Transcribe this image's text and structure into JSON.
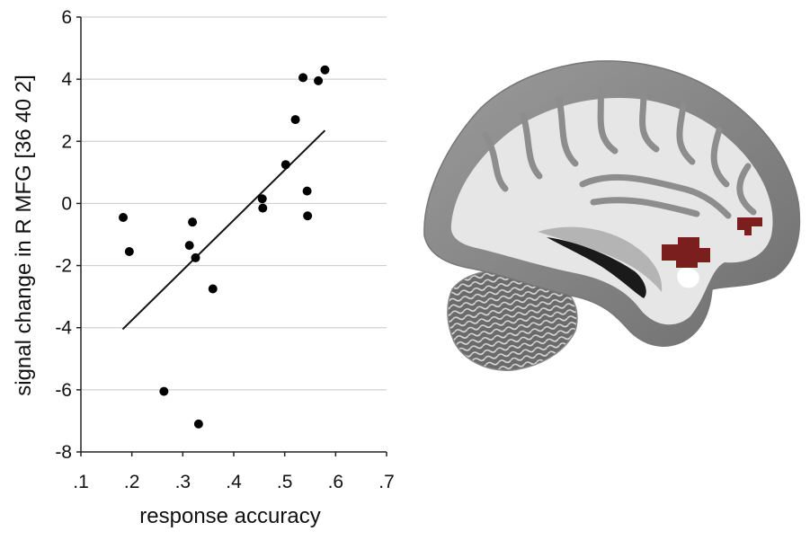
{
  "chart_data": {
    "type": "scatter",
    "xlabel": "response accuracy",
    "ylabel": "signal change in R MFG [36 40 2]",
    "xlim": [
      0.1,
      0.7
    ],
    "ylim": [
      -8,
      6
    ],
    "xticks": [
      ".1",
      ".2",
      ".3",
      ".4",
      ".5",
      ".6",
      ".7"
    ],
    "xtick_values": [
      0.1,
      0.2,
      0.3,
      0.4,
      0.5,
      0.6,
      0.7
    ],
    "yticks": [
      "6",
      "4",
      "2",
      "0",
      "-2",
      "-4",
      "-6",
      "-8"
    ],
    "ytick_values": [
      6,
      4,
      2,
      0,
      -2,
      -4,
      -6,
      -8
    ],
    "grid": "horizontal",
    "points": [
      {
        "x": 0.183,
        "y": -0.45
      },
      {
        "x": 0.195,
        "y": -1.55
      },
      {
        "x": 0.263,
        "y": -6.05
      },
      {
        "x": 0.313,
        "y": -1.35
      },
      {
        "x": 0.319,
        "y": -0.6
      },
      {
        "x": 0.325,
        "y": -1.75
      },
      {
        "x": 0.331,
        "y": -7.1
      },
      {
        "x": 0.359,
        "y": -2.75
      },
      {
        "x": 0.456,
        "y": 0.15
      },
      {
        "x": 0.457,
        "y": -0.15
      },
      {
        "x": 0.502,
        "y": 1.25
      },
      {
        "x": 0.521,
        "y": 2.7
      },
      {
        "x": 0.536,
        "y": 4.05
      },
      {
        "x": 0.544,
        "y": 0.4
      },
      {
        "x": 0.545,
        "y": -0.4
      },
      {
        "x": 0.566,
        "y": 3.95
      },
      {
        "x": 0.579,
        "y": 4.3
      }
    ],
    "fit_line": {
      "x": [
        0.182,
        0.579
      ],
      "y": [
        -4.05,
        2.35
      ]
    }
  },
  "brain_image": {
    "description_icon": "sagittal-brain-slice",
    "activation_color": "#7a1e1e"
  }
}
